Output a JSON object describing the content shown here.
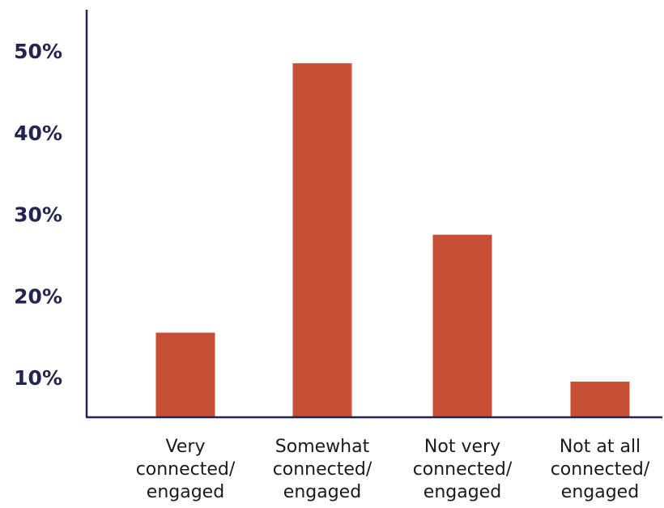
{
  "chart_data": {
    "type": "bar",
    "title": "",
    "xlabel": "",
    "ylabel": "",
    "categories": [
      [
        "Very",
        "connected/",
        "engaged"
      ],
      [
        "Somewhat",
        "connected/",
        "engaged"
      ],
      [
        "Not very",
        "connected/",
        "engaged"
      ],
      [
        "Not at all",
        "connected/",
        "engaged"
      ]
    ],
    "values": [
      15.5,
      48.5,
      27.5,
      9.5
    ],
    "ylim": [
      5,
      55
    ],
    "yticks": [
      10,
      20,
      30,
      40,
      50
    ],
    "ytick_labels": [
      "10%",
      "20%",
      "30%",
      "40%",
      "50%"
    ],
    "grid": false,
    "legend": "none",
    "colors": {
      "bar": "#c64f35",
      "axis": "#23244f",
      "tick_text": "#23244f",
      "category_text": "#1a1a1a"
    }
  }
}
